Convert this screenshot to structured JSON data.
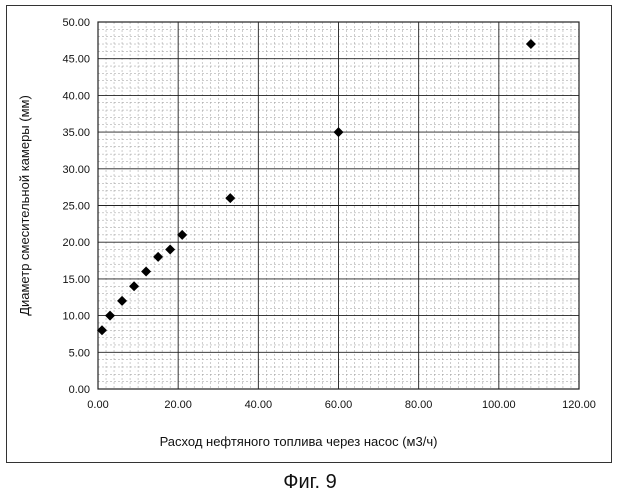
{
  "caption": "Фиг. 9",
  "chart_data": {
    "type": "scatter",
    "title": "",
    "xlabel": "Расход нефтяного топлива через насос (м3/ч)",
    "ylabel": "Диаметр смесительной камеры (мм)",
    "xlim": [
      0,
      120
    ],
    "ylim": [
      0,
      50
    ],
    "xticks": [
      "0.00",
      "20.00",
      "40.00",
      "60.00",
      "80.00",
      "100.00",
      "120.00"
    ],
    "yticks": [
      "0.00",
      "5.00",
      "10.00",
      "15.00",
      "20.00",
      "25.00",
      "30.00",
      "35.00",
      "40.00",
      "45.00",
      "50.00"
    ],
    "grid": true,
    "marker": "diamond",
    "marker_color": "#000000",
    "series": [
      {
        "x": [
          1,
          3,
          6,
          9,
          12,
          15,
          18,
          21,
          33,
          60,
          108
        ],
        "y": [
          8,
          10,
          12,
          14,
          16,
          18,
          19,
          21,
          26,
          35,
          47
        ]
      }
    ]
  }
}
